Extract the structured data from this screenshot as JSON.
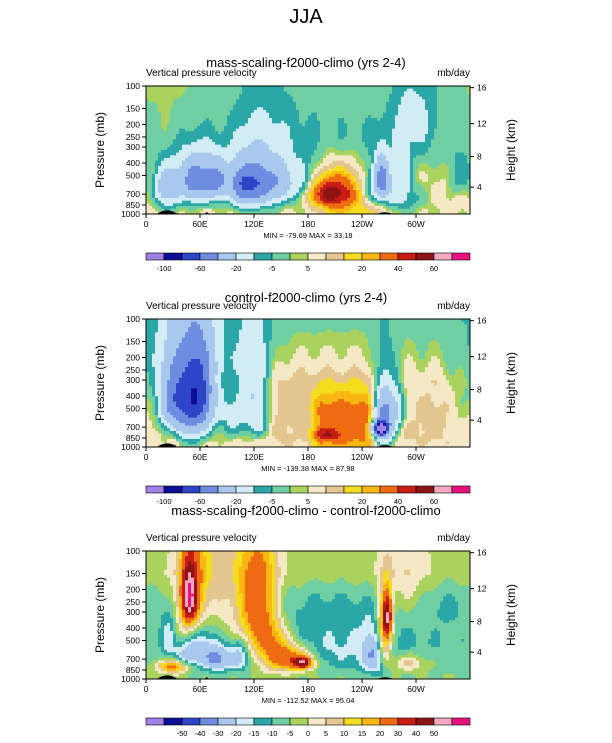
{
  "figure": {
    "main_title": "JJA"
  },
  "colors": {
    "palette": [
      "#9e80e6",
      "#0d0d96",
      "#2f45c8",
      "#6e8ce0",
      "#a8c8ee",
      "#d2ecf6",
      "#2aa7a6",
      "#6fcfa2",
      "#a9d25e",
      "#f4e8c5",
      "#e4c690",
      "#f5dc1e",
      "#f9b712",
      "#ef6b12",
      "#c71d16",
      "#8c1414",
      "#f2a8c0",
      "#e8127f"
    ],
    "continent": "#000000"
  },
  "chart_data": [
    {
      "type": "heatmap",
      "title": "mass-scaling-f2000-climo (yrs 2-4)",
      "left_label": "Vertical pressure velocity",
      "right_label": "mb/day",
      "ylabel": "Pressure (mb)",
      "ylabel_right": "Height (km)",
      "ylim": [
        1000,
        100
      ],
      "yticks": [
        "100",
        "150",
        "200",
        "250",
        "300",
        "400",
        "500",
        "700",
        "850",
        "1000"
      ],
      "height_ticks": [
        "16",
        "12",
        "8",
        "4"
      ],
      "xlim": [
        0,
        360
      ],
      "xticks": [
        "0",
        "60E",
        "120E",
        "180",
        "120W",
        "60W"
      ],
      "minmax_text": "MIN = -79.69  MAX = 33.18",
      "colorbar_labels": [
        "-100",
        "-60",
        "-20",
        "-5",
        "5",
        "20",
        "40",
        "60"
      ],
      "levels": [
        -100,
        -80,
        -60,
        -40,
        -20,
        -10,
        -5,
        -1,
        1,
        5,
        10,
        15,
        20,
        30,
        40,
        50,
        60
      ],
      "field": {
        "base": 2,
        "profile": [
          [
            100,
            -2
          ],
          [
            150,
            -2
          ],
          [
            200,
            -2
          ],
          [
            300,
            -1
          ],
          [
            500,
            1
          ],
          [
            700,
            2
          ],
          [
            1000,
            0
          ]
        ],
        "warm_bands": [
          [
            190,
            275,
            10
          ]
        ],
        "blobs": [
          [
            25,
            650,
            10,
            260,
            -20
          ],
          [
            55,
            550,
            14,
            220,
            -55
          ],
          [
            80,
            550,
            10,
            200,
            -40
          ],
          [
            105,
            600,
            9,
            230,
            -40
          ],
          [
            125,
            580,
            14,
            250,
            -60
          ],
          [
            150,
            560,
            8,
            220,
            -25
          ],
          [
            170,
            600,
            10,
            220,
            -20
          ],
          [
            255,
            650,
            16,
            220,
            -35
          ],
          [
            262,
            520,
            6,
            180,
            -45
          ],
          [
            285,
            500,
            6,
            250,
            -15
          ],
          [
            350,
            500,
            10,
            220,
            -10
          ],
          [
            290,
            750,
            18,
            200,
            -10
          ],
          [
            225,
            680,
            30,
            200,
            18
          ],
          [
            200,
            700,
            15,
            150,
            22
          ],
          [
            130,
            220,
            30,
            180,
            -6
          ],
          [
            20,
            600,
            8,
            200,
            -15
          ],
          [
            225,
            300,
            75,
            250,
            -5
          ],
          [
            300,
            180,
            18,
            160,
            -10
          ]
        ]
      }
    },
    {
      "type": "heatmap",
      "title": "control-f2000-climo (yrs 2-4)",
      "left_label": "Vertical pressure velocity",
      "right_label": "mb/day",
      "ylabel": "Pressure (mb)",
      "ylabel_right": "Height (km)",
      "ylim": [
        1000,
        100
      ],
      "yticks": [
        "100",
        "150",
        "200",
        "250",
        "300",
        "400",
        "500",
        "700",
        "850",
        "1000"
      ],
      "height_ticks": [
        "16",
        "12",
        "8",
        "4"
      ],
      "xlim": [
        0,
        360
      ],
      "xticks": [
        "0",
        "60E",
        "120E",
        "180",
        "120W",
        "60W"
      ],
      "minmax_text": "MIN = -139.38  MAX = 87.98",
      "colorbar_labels": [
        "-100",
        "-60",
        "-20",
        "-5",
        "5",
        "20",
        "40",
        "60"
      ],
      "levels": [
        -100,
        -80,
        -60,
        -40,
        -20,
        -10,
        -5,
        -1,
        1,
        5,
        10,
        15,
        20,
        30,
        40,
        50,
        60
      ],
      "field": {
        "base": 2,
        "profile": [
          [
            100,
            -4
          ],
          [
            150,
            -2
          ],
          [
            200,
            0
          ],
          [
            300,
            5
          ],
          [
            500,
            8
          ],
          [
            700,
            8
          ],
          [
            1000,
            2
          ]
        ],
        "warm_bands": [
          [
            180,
            260,
            14
          ],
          [
            20,
            40,
            10
          ]
        ],
        "blobs": [
          [
            45,
            450,
            18,
            350,
            -60
          ],
          [
            60,
            400,
            12,
            300,
            -40
          ],
          [
            95,
            600,
            10,
            250,
            -15
          ],
          [
            100,
            560,
            20,
            300,
            -5
          ],
          [
            120,
            400,
            12,
            300,
            -25
          ],
          [
            125,
            700,
            10,
            150,
            -12
          ],
          [
            170,
            650,
            15,
            200,
            -5
          ],
          [
            265,
            600,
            8,
            300,
            -60
          ],
          [
            260,
            720,
            5,
            80,
            -120
          ],
          [
            280,
            500,
            6,
            200,
            -20
          ],
          [
            300,
            550,
            12,
            300,
            -5
          ],
          [
            348,
            600,
            15,
            300,
            -8
          ],
          [
            70,
            200,
            40,
            130,
            -6
          ],
          [
            20,
            300,
            40,
            200,
            -5
          ],
          [
            200,
            800,
            12,
            80,
            20
          ],
          [
            28,
            450,
            8,
            220,
            -25
          ]
        ]
      }
    },
    {
      "type": "heatmap",
      "title": "mass-scaling-f2000-climo - control-f2000-climo",
      "left_label": "Vertical pressure velocity",
      "right_label": "mb/day",
      "ylabel": "Pressure (mb)",
      "ylabel_right": "Height (km)",
      "ylim": [
        1000,
        100
      ],
      "yticks": [
        "100",
        "150",
        "200",
        "250",
        "300",
        "400",
        "500",
        "700",
        "850",
        "1000"
      ],
      "height_ticks": [
        "16",
        "12",
        "8",
        "4"
      ],
      "xlim": [
        0,
        360
      ],
      "xticks": [
        "0",
        "60E",
        "120E",
        "180",
        "120W",
        "60W"
      ],
      "minmax_text": "MIN = -112.52  MAX = 95.04",
      "colorbar_labels": [
        "-50",
        "-40",
        "-30",
        "-20",
        "-15",
        "-10",
        "-5",
        "0",
        "5",
        "10",
        "15",
        "20",
        "30",
        "40",
        "50"
      ],
      "levels": [
        -60,
        -50,
        -40,
        -30,
        -20,
        -15,
        -10,
        -5,
        0,
        5,
        10,
        15,
        20,
        30,
        40,
        50,
        60
      ],
      "field": {
        "base": -4,
        "profile": [
          [
            100,
            3
          ],
          [
            150,
            4
          ],
          [
            200,
            1
          ],
          [
            300,
            -2
          ],
          [
            500,
            -4
          ],
          [
            700,
            -3
          ],
          [
            1000,
            -1
          ]
        ],
        "warm_bands": [],
        "blobs": [
          [
            55,
            300,
            14,
            320,
            30
          ],
          [
            48,
            230,
            6,
            120,
            50
          ],
          [
            120,
            350,
            14,
            350,
            25
          ],
          [
            135,
            280,
            10,
            350,
            10
          ],
          [
            265,
            500,
            6,
            250,
            35
          ],
          [
            268,
            320,
            4,
            120,
            45
          ],
          [
            145,
            600,
            12,
            250,
            25
          ],
          [
            165,
            700,
            14,
            160,
            30
          ],
          [
            175,
            750,
            8,
            80,
            40
          ],
          [
            30,
            800,
            12,
            100,
            30
          ],
          [
            60,
            500,
            12,
            250,
            -28
          ],
          [
            80,
            700,
            10,
            150,
            -25
          ],
          [
            45,
            650,
            10,
            150,
            -18
          ],
          [
            105,
            650,
            8,
            200,
            -20
          ],
          [
            255,
            650,
            10,
            250,
            -20
          ],
          [
            25,
            450,
            6,
            200,
            -12
          ],
          [
            290,
            750,
            15,
            120,
            15
          ],
          [
            220,
            600,
            60,
            250,
            -8
          ],
          [
            205,
            280,
            60,
            140,
            -6
          ],
          [
            330,
            250,
            30,
            120,
            -6
          ],
          [
            100,
            250,
            20,
            250,
            8
          ],
          [
            290,
            200,
            20,
            150,
            8
          ]
        ]
      }
    }
  ]
}
